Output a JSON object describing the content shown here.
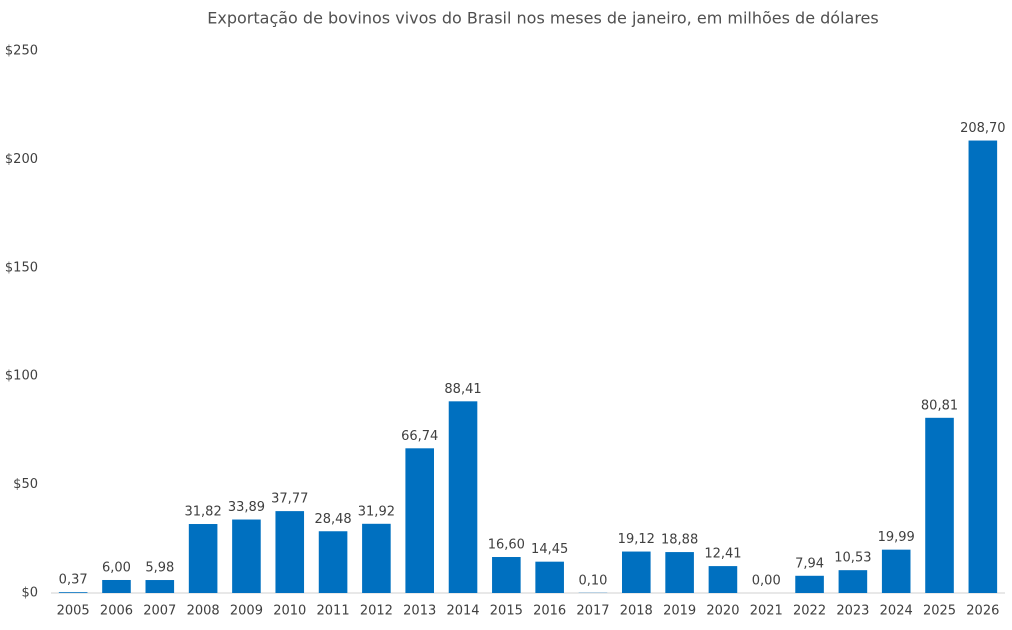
{
  "chart_data": {
    "type": "bar",
    "title": "Exportação de bovinos vivos do Brasil nos meses de janeiro, em milhões de dólares",
    "categories": [
      "2005",
      "2006",
      "2007",
      "2008",
      "2009",
      "2010",
      "2011",
      "2012",
      "2013",
      "2014",
      "2015",
      "2016",
      "2017",
      "2018",
      "2019",
      "2020",
      "2021",
      "2022",
      "2023",
      "2024",
      "2025",
      "2026"
    ],
    "values": [
      0.37,
      6.0,
      5.98,
      31.82,
      33.89,
      37.77,
      28.48,
      31.92,
      66.74,
      88.41,
      16.6,
      14.45,
      0.1,
      19.12,
      18.88,
      12.41,
      0.0,
      7.94,
      10.53,
      19.99,
      80.81,
      208.7
    ],
    "value_labels": [
      "0,37",
      "6,00",
      "5,98",
      "31,82",
      "33,89",
      "37,77",
      "28,48",
      "31,92",
      "66,74",
      "88,41",
      "16,60",
      "14,45",
      "0,10",
      "19,12",
      "18,88",
      "12,41",
      "0,00",
      "7,94",
      "10,53",
      "19,99",
      "80,81",
      "208,70"
    ],
    "color": "#0070c0",
    "ylim": [
      0,
      250
    ],
    "yticks": [
      {
        "value": 0,
        "label": "$0"
      },
      {
        "value": 50,
        "label": "$50"
      },
      {
        "value": 100,
        "label": "$100"
      },
      {
        "value": 150,
        "label": "$150"
      },
      {
        "value": 200,
        "label": "$200"
      },
      {
        "value": 250,
        "label": "$250"
      }
    ],
    "grid": false
  }
}
